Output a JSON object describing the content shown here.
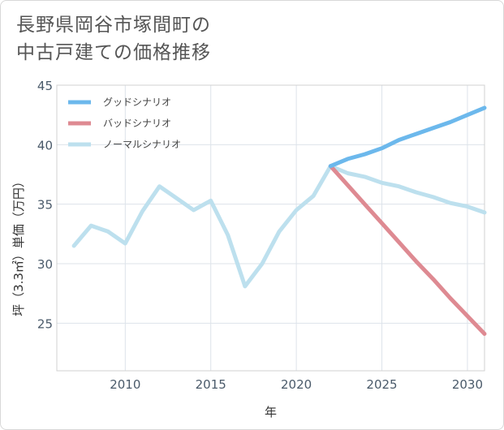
{
  "chart_data": {
    "type": "line",
    "title_lines": [
      "長野県岡谷市塚間町の",
      "中古戸建ての価格推移"
    ],
    "xlabel": "年",
    "ylabel": "坪（3.3㎡）単価（万円）",
    "xlim": [
      2006,
      2031
    ],
    "ylim": [
      21,
      45
    ],
    "x_ticks": [
      2010,
      2015,
      2020,
      2025,
      2030
    ],
    "y_ticks": [
      25,
      30,
      35,
      40,
      45
    ],
    "legend_position": "top-left",
    "series": [
      {
        "name": "グッドシナリオ",
        "color": "#6cb8ec",
        "x": [
          2022,
          2023,
          2024,
          2025,
          2026,
          2027,
          2028,
          2029,
          2030,
          2031
        ],
        "values": [
          38.2,
          38.8,
          39.2,
          39.7,
          40.4,
          40.9,
          41.4,
          41.9,
          42.5,
          43.1
        ]
      },
      {
        "name": "バッドシナリオ",
        "color": "#de8a92",
        "x": [
          2022,
          2023,
          2024,
          2025,
          2026,
          2027,
          2028,
          2029,
          2030,
          2031
        ],
        "values": [
          38.2,
          36.6,
          35.0,
          33.4,
          31.8,
          30.2,
          28.7,
          27.1,
          25.6,
          24.1
        ]
      },
      {
        "name": "ノーマルシナリオ",
        "color": "#bde0ee",
        "x": [
          2007,
          2008,
          2009,
          2010,
          2011,
          2012,
          2013,
          2014,
          2015,
          2016,
          2017,
          2018,
          2019,
          2020,
          2021,
          2022,
          2023,
          2024,
          2025,
          2026,
          2027,
          2028,
          2029,
          2030,
          2031
        ],
        "values": [
          31.5,
          33.2,
          32.7,
          31.7,
          34.4,
          36.5,
          35.5,
          34.5,
          35.3,
          32.4,
          28.1,
          30.0,
          32.7,
          34.5,
          35.7,
          38.2,
          37.6,
          37.3,
          36.8,
          36.5,
          36.0,
          35.6,
          35.1,
          34.8,
          34.3
        ]
      }
    ]
  }
}
